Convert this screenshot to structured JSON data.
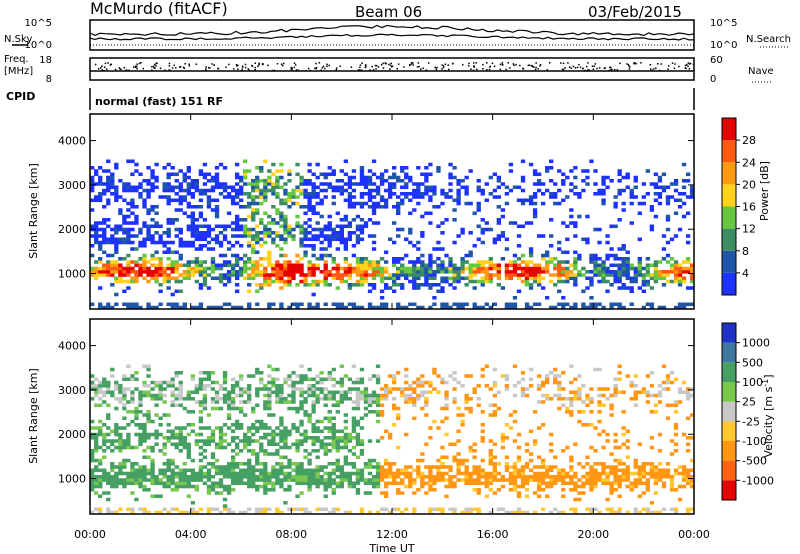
{
  "header": {
    "station": "McMurdo (fitACF)",
    "beam": "Beam 06",
    "date": "03/Feb/2015"
  },
  "noise_panel": {
    "left_label": "N.Sky",
    "right_label": "N.Search",
    "ticks": [
      "10^5",
      "10^0"
    ]
  },
  "freq_panel": {
    "left_label_1": "Freq.",
    "left_label_2": "[MHz]",
    "left_ticks": [
      "18",
      "8"
    ],
    "right_label": "Nave",
    "right_ticks": [
      "60",
      "0"
    ]
  },
  "cpid": {
    "label": "CPID",
    "value": "normal (fast) 151 RF"
  },
  "chart_data": [
    {
      "type": "heatmap",
      "ylabel": "Slant Range [km]",
      "xlabel": "",
      "y_ticks": [
        "1000",
        "2000",
        "3000",
        "4000"
      ],
      "ylim": [
        200,
        4600
      ],
      "colorbar": {
        "label": "Power [dB]",
        "ticks": [
          "4",
          "8",
          "12",
          "16",
          "20",
          "24",
          "28"
        ],
        "colors": [
          "#1e32ff",
          "#1f56a8",
          "#3c8c64",
          "#66c840",
          "#ffd21e",
          "#ff9a14",
          "#ff5a14",
          "#e60000"
        ]
      }
    },
    {
      "type": "heatmap",
      "ylabel": "Slant Range [km]",
      "xlabel": "Time UT",
      "y_ticks": [
        "1000",
        "2000",
        "3000",
        "4000"
      ],
      "x_ticks": [
        "00:00",
        "04:00",
        "08:00",
        "12:00",
        "16:00",
        "20:00",
        "00:00"
      ],
      "ylim": [
        200,
        4600
      ],
      "colorbar": {
        "label": "Velocity [m s^-1]",
        "ticks": [
          "1000",
          "500",
          "100",
          "25",
          "-25",
          "-100",
          "-500",
          "-1000"
        ],
        "colors": [
          "#1e32c8",
          "#3c78a0",
          "#46a064",
          "#78c850",
          "#c8c8c8",
          "#ffc832",
          "#ff9614",
          "#ff6414",
          "#e60000"
        ]
      }
    }
  ]
}
